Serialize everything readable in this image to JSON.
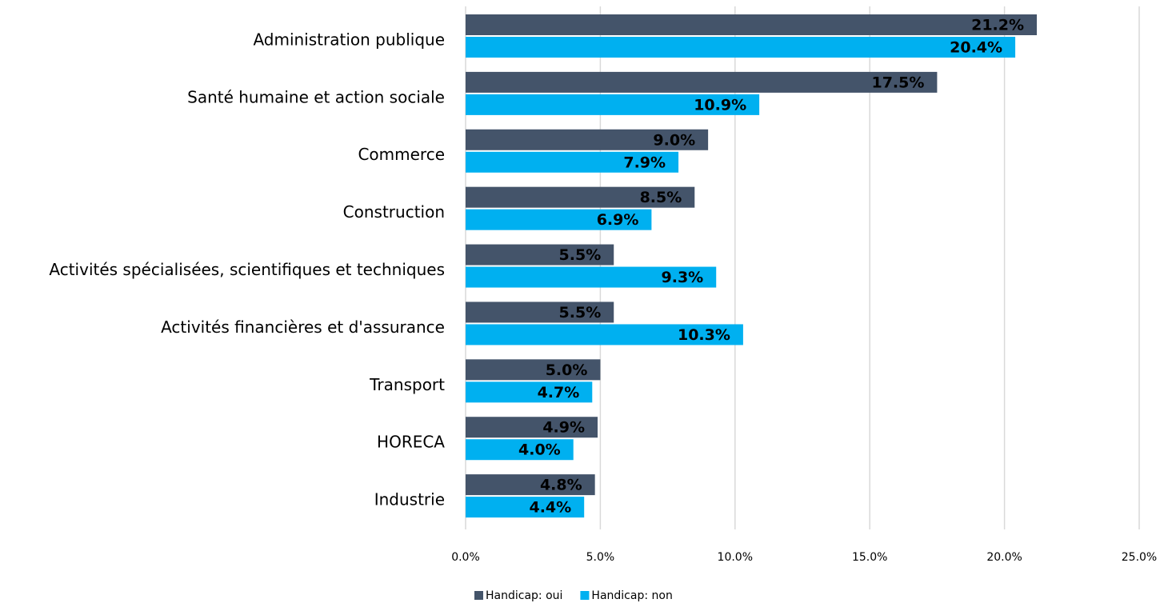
{
  "chart_data": {
    "type": "barh",
    "categories": [
      "Administration publique",
      "Santé humaine et action sociale",
      "Commerce",
      "Construction",
      "Activités spécialisées, scientifiques et techniques",
      "Activités financières et d'assurance",
      "Transport",
      "HORECA",
      "Industrie"
    ],
    "series": [
      {
        "name": "Handicap: oui",
        "color": "#44546a",
        "values": [
          21.2,
          17.5,
          9.0,
          8.5,
          5.5,
          5.5,
          5.0,
          4.9,
          4.8
        ],
        "value_labels": [
          "21.2%",
          "17.5%",
          "9.0%",
          "8.5%",
          "5.5%",
          "5.5%",
          "5.0%",
          "4.9%",
          "4.8%"
        ]
      },
      {
        "name": "Handicap: non",
        "color": "#00b0f0",
        "values": [
          20.4,
          10.9,
          7.9,
          6.9,
          9.3,
          10.3,
          4.7,
          4.0,
          4.4
        ],
        "value_labels": [
          "20.4%",
          "10.9%",
          "7.9%",
          "6.9%",
          "9.3%",
          "10.3%",
          "4.7%",
          "4.0%",
          "4.4%"
        ]
      }
    ],
    "xlim": [
      0,
      25
    ],
    "xticks": [
      {
        "value": 0,
        "label": "0.0%"
      },
      {
        "value": 5,
        "label": "5.0%"
      },
      {
        "value": 10,
        "label": "10.0%"
      },
      {
        "value": 15,
        "label": "15.0%"
      },
      {
        "value": 20,
        "label": "20.0%"
      },
      {
        "value": 25,
        "label": "25.0%"
      }
    ],
    "grid": true,
    "legend": "bottom"
  }
}
